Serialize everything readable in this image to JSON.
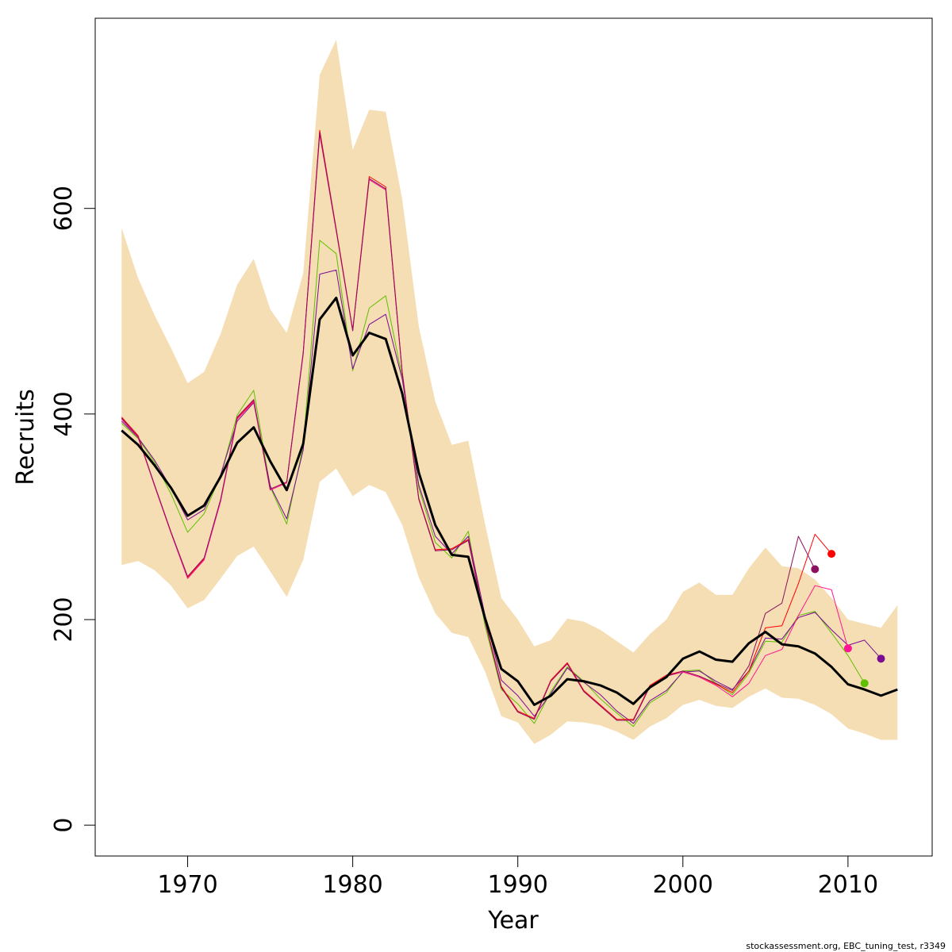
{
  "chart_data": {
    "type": "line",
    "title": "",
    "xlabel": "Year",
    "ylabel": "Recruits",
    "xlim": [
      1964.4,
      2015.1
    ],
    "ylim": [
      -30,
      785
    ],
    "x_ticks": [
      1970,
      1980,
      1990,
      2000,
      2010
    ],
    "y_ticks": [
      0,
      200,
      400,
      600
    ],
    "grid": false,
    "legend": "none",
    "credit": "stockassessment.org, EBC_tuning_test, r3349",
    "band": {
      "color": "#F5DEB3",
      "x": [
        1966,
        1967,
        1968,
        1969,
        1970,
        1971,
        1972,
        1973,
        1974,
        1975,
        1976,
        1977,
        1978,
        1979,
        1980,
        1981,
        1982,
        1983,
        1984,
        1985,
        1986,
        1987,
        1988,
        1989,
        1990,
        1991,
        1992,
        1993,
        1994,
        1995,
        1996,
        1997,
        1998,
        1999,
        2000,
        2001,
        2002,
        2003,
        2004,
        2005,
        2006,
        2007,
        2008,
        2009,
        2010,
        2011,
        2012,
        2013
      ],
      "lower": [
        253,
        257,
        248,
        233,
        211,
        219,
        240,
        262,
        271,
        247,
        222,
        258,
        334,
        347,
        320,
        331,
        324,
        292,
        241,
        206,
        187,
        183,
        150,
        106,
        100,
        79,
        88,
        101,
        100,
        97,
        91,
        83,
        96,
        104,
        117,
        122,
        116,
        114,
        125,
        133,
        124,
        123,
        117,
        108,
        94,
        89,
        83,
        83
      ],
      "upper": [
        581,
        532,
        496,
        464,
        430,
        441,
        478,
        526,
        551,
        502,
        479,
        537,
        730,
        764,
        657,
        696,
        694,
        609,
        485,
        412,
        370,
        374,
        294,
        221,
        200,
        174,
        180,
        201,
        198,
        190,
        179,
        168,
        186,
        200,
        227,
        236,
        224,
        224,
        250,
        270,
        252,
        250,
        239,
        221,
        200,
        196,
        192,
        214
      ]
    },
    "series": [
      {
        "color": "#000000",
        "width": 3,
        "x": [
          1966,
          1967,
          1968,
          1969,
          1970,
          1971,
          1972,
          1973,
          1974,
          1975,
          1976,
          1977,
          1978,
          1979,
          1980,
          1981,
          1982,
          1983,
          1984,
          1985,
          1986,
          1987,
          1988,
          1989,
          1990,
          1991,
          1992,
          1993,
          1994,
          1995,
          1996,
          1997,
          1998,
          1999,
          2000,
          2001,
          2002,
          2003,
          2004,
          2005,
          2006,
          2007,
          2008,
          2009,
          2010,
          2011,
          2012,
          2013
        ],
        "values": [
          384,
          370,
          350,
          328,
          301,
          311,
          339,
          372,
          387,
          354,
          326,
          371,
          492,
          513,
          457,
          479,
          473,
          420,
          343,
          292,
          263,
          261,
          202,
          152,
          140,
          117,
          126,
          142,
          140,
          136,
          129,
          118,
          134,
          144,
          162,
          169,
          161,
          159,
          177,
          188,
          176,
          174,
          167,
          154,
          137,
          132,
          126,
          132
        ]
      },
      {
        "color": "#5fc000",
        "width": 1,
        "x": [
          1966,
          1967,
          1968,
          1969,
          1970,
          1971,
          1972,
          1973,
          1974,
          1975,
          1976,
          1977,
          1978,
          1979,
          1980,
          1981,
          1982,
          1983,
          1984,
          1985,
          1986,
          1987,
          1988,
          1989,
          1990,
          1991,
          1992,
          1993,
          1994,
          1995,
          1996,
          1997,
          1998,
          1999,
          2000,
          2001,
          2002,
          2003,
          2004,
          2005,
          2006,
          2007,
          2008,
          2009,
          2010,
          2011
        ],
        "values": [
          391,
          376,
          353,
          322,
          285,
          303,
          340,
          399,
          423,
          329,
          293,
          369,
          569,
          556,
          442,
          503,
          515,
          436,
          328,
          275,
          260,
          286,
          195,
          132,
          118,
          99,
          130,
          154,
          140,
          123,
          109,
          96,
          119,
          129,
          150,
          151,
          138,
          127,
          148,
          179,
          178,
          204,
          208,
          187,
          165,
          138
        ],
        "end_marker": true
      },
      {
        "color": "#7a0b94",
        "width": 1,
        "x": [
          1966,
          1967,
          1968,
          1969,
          1970,
          1971,
          1972,
          1973,
          1974,
          1975,
          1976,
          1977,
          1978,
          1979,
          1980,
          1981,
          1982,
          1983,
          1984,
          1985,
          1986,
          1987,
          1988,
          1989,
          1990,
          1991,
          1992,
          1993,
          1994,
          1995,
          1996,
          1997,
          1998,
          1999,
          2000,
          2001,
          2002,
          2003,
          2004,
          2005,
          2006,
          2007,
          2008,
          2009,
          2010,
          2011,
          2012
        ],
        "values": [
          393,
          377,
          355,
          328,
          297,
          307,
          341,
          393,
          411,
          330,
          298,
          365,
          536,
          540,
          444,
          487,
          497,
          434,
          331,
          281,
          264,
          281,
          205,
          141,
          126,
          106,
          128,
          153,
          139,
          127,
          111,
          99,
          121,
          131,
          149,
          150,
          140,
          132,
          150,
          182,
          181,
          202,
          207,
          190,
          175,
          180,
          162
        ],
        "end_marker": true
      },
      {
        "color": "#ff0000",
        "width": 1,
        "x": [
          1966,
          1967,
          1968,
          1969,
          1970,
          1971,
          1972,
          1973,
          1974,
          1975,
          1976,
          1977,
          1978,
          1979,
          1980,
          1981,
          1982,
          1983,
          1984,
          1985,
          1986,
          1987,
          1988,
          1989,
          1990,
          1991,
          1992,
          1993,
          1994,
          1995,
          1996,
          1997,
          1998,
          1999,
          2000,
          2001,
          2002,
          2003,
          2004,
          2005,
          2006,
          2007,
          2008,
          2009
        ],
        "values": [
          397,
          379,
          330,
          284,
          241,
          259,
          316,
          396,
          413,
          326,
          333,
          459,
          676,
          580,
          482,
          631,
          621,
          441,
          318,
          268,
          269,
          278,
          200,
          135,
          111,
          104,
          141,
          158,
          131,
          117,
          103,
          103,
          136,
          146,
          150,
          145,
          137,
          129,
          150,
          192,
          194,
          235,
          283,
          264
        ],
        "end_marker": true
      },
      {
        "color": "#ff1493",
        "width": 1,
        "x": [
          1966,
          1967,
          1968,
          1969,
          1970,
          1971,
          1972,
          1973,
          1974,
          1975,
          1976,
          1977,
          1978,
          1979,
          1980,
          1981,
          1982,
          1983,
          1984,
          1985,
          1986,
          1987,
          1988,
          1989,
          1990,
          1991,
          1992,
          1993,
          1994,
          1995,
          1996,
          1997,
          1998,
          1999,
          2000,
          2001,
          2002,
          2003,
          2004,
          2005,
          2006,
          2007,
          2008,
          2009,
          2010
        ],
        "values": [
          395,
          377,
          330,
          284,
          240,
          258,
          315,
          395,
          412,
          326,
          333,
          458,
          672,
          578,
          481,
          628,
          618,
          440,
          317,
          267,
          268,
          277,
          199,
          134,
          110,
          103,
          140,
          157,
          130,
          116,
          102,
          102,
          135,
          145,
          149,
          144,
          136,
          125,
          138,
          165,
          171,
          204,
          233,
          229,
          172
        ],
        "end_marker": true
      },
      {
        "color": "#8b1060",
        "width": 1,
        "x": [
          1966,
          1967,
          1968,
          1969,
          1970,
          1971,
          1972,
          1973,
          1974,
          1975,
          1976,
          1977,
          1978,
          1979,
          1980,
          1981,
          1982,
          1983,
          1984,
          1985,
          1986,
          1987,
          1988,
          1989,
          1990,
          1991,
          1992,
          1993,
          1994,
          1995,
          1996,
          1997,
          1998,
          1999,
          2000,
          2001,
          2002,
          2003,
          2004,
          2005,
          2006,
          2007,
          2008
        ],
        "values": [
          396,
          378,
          331,
          285,
          242,
          260,
          317,
          397,
          414,
          327,
          334,
          460,
          674,
          579,
          481,
          629,
          619,
          440,
          317,
          267,
          268,
          277,
          199,
          134,
          110,
          103,
          140,
          157,
          130,
          116,
          102,
          102,
          135,
          145,
          150,
          145,
          138,
          131,
          155,
          206,
          216,
          281,
          249
        ],
        "end_marker": true
      }
    ]
  }
}
